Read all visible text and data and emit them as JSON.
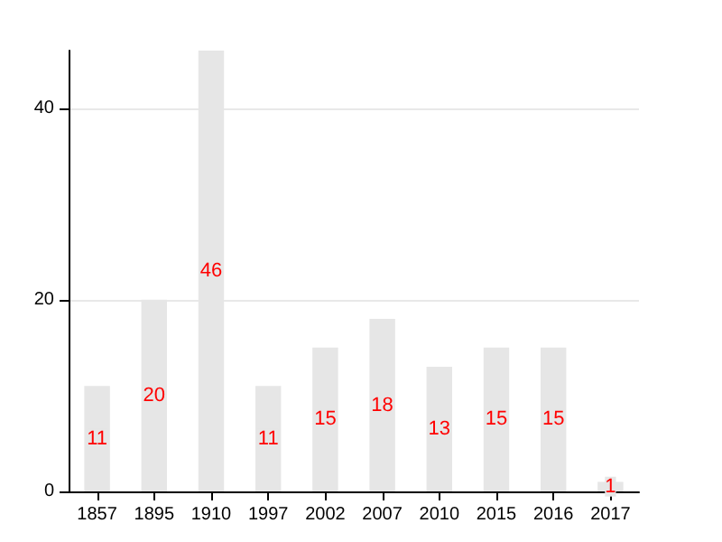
{
  "chart_data": {
    "type": "bar",
    "categories": [
      "1857",
      "1895",
      "1910",
      "1997",
      "2002",
      "2007",
      "2010",
      "2015",
      "2016",
      "2017"
    ],
    "values": [
      11,
      20,
      46,
      11,
      15,
      18,
      13,
      15,
      15,
      1
    ],
    "color": "#e6e6e6",
    "ylim": [
      0,
      46
    ],
    "yticks": [
      0,
      20,
      40
    ],
    "grid": "y",
    "data_labels": true
  }
}
